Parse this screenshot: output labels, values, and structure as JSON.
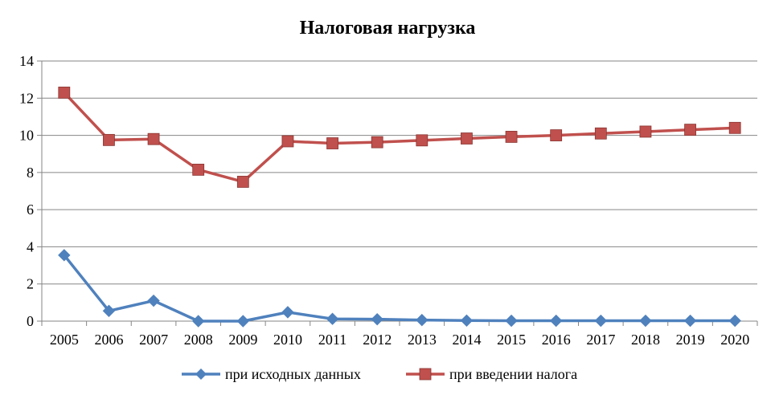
{
  "chart_data": {
    "type": "line",
    "title": "Налоговая нагрузка",
    "xlabel": "",
    "ylabel": "",
    "categories": [
      "2005",
      "2006",
      "2007",
      "2008",
      "2009",
      "2010",
      "2011",
      "2012",
      "2013",
      "2014",
      "2015",
      "2016",
      "2017",
      "2018",
      "2019",
      "2020"
    ],
    "ylim": [
      0,
      14
    ],
    "yticks": [
      "0",
      "2",
      "4",
      "6",
      "8",
      "10",
      "12",
      "14"
    ],
    "grid": true,
    "legend_position": "bottom",
    "series": [
      {
        "name": "при исходных данных",
        "color": "#4F81BD",
        "marker": "diamond",
        "values": [
          3.55,
          0.55,
          1.1,
          0.0,
          0.0,
          0.48,
          0.12,
          0.1,
          0.06,
          0.03,
          0.02,
          0.02,
          0.02,
          0.02,
          0.02,
          0.02
        ]
      },
      {
        "name": "при введении налога",
        "color": "#C0504D",
        "marker": "square",
        "values": [
          12.3,
          9.75,
          9.8,
          8.15,
          7.5,
          9.68,
          9.57,
          9.63,
          9.73,
          9.83,
          9.92,
          10.0,
          10.1,
          10.2,
          10.3,
          10.4
        ]
      }
    ]
  }
}
